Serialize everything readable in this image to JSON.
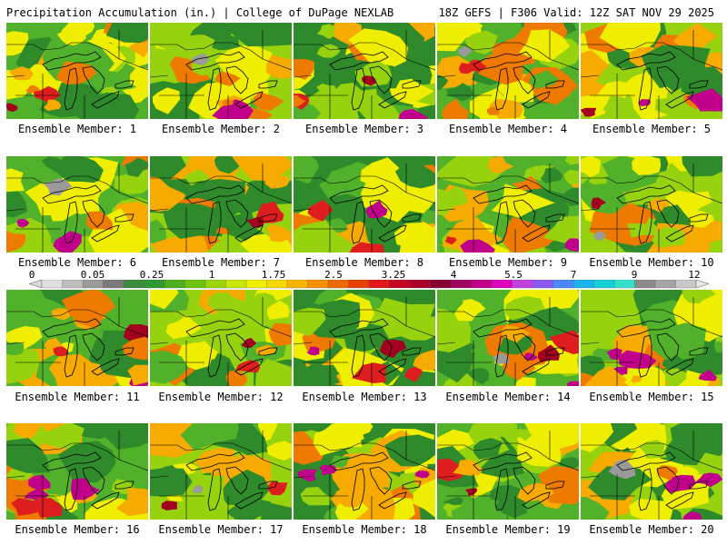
{
  "header": {
    "title": "Precipitation Accumulation (in.) | College of DuPage NEXLAB",
    "model_info": "18Z GEFS | F306 Valid: 12Z SAT NOV 29 2025"
  },
  "member_label": "Ensemble Member:",
  "members": [
    {
      "number": "1"
    },
    {
      "number": "2"
    },
    {
      "number": "3"
    },
    {
      "number": "4"
    },
    {
      "number": "5"
    },
    {
      "number": "6"
    },
    {
      "number": "7"
    },
    {
      "number": "8"
    },
    {
      "number": "9"
    },
    {
      "number": "10"
    },
    {
      "number": "11"
    },
    {
      "number": "12"
    },
    {
      "number": "13"
    },
    {
      "number": "14"
    },
    {
      "number": "15"
    },
    {
      "number": "16"
    },
    {
      "number": "17"
    },
    {
      "number": "18"
    },
    {
      "number": "19"
    },
    {
      "number": "20"
    }
  ],
  "colorbar": {
    "tick_labels": [
      "0",
      "0.05",
      "0.25",
      "1",
      "1.75",
      "2.5",
      "3.25",
      "4",
      "5.5",
      "7",
      "9",
      "12"
    ],
    "colors": [
      "#e0e0e0",
      "#bdbdbd",
      "#9a9a9a",
      "#7a7a7a",
      "#3c8c3c",
      "#2f9a2f",
      "#4caf1e",
      "#6cc40e",
      "#9ad60a",
      "#c8e60a",
      "#f0f000",
      "#f8d800",
      "#f8b400",
      "#f89000",
      "#f06800",
      "#e84000",
      "#e01818",
      "#c80020",
      "#a80028",
      "#880030",
      "#a00060",
      "#c0008a",
      "#e000c0",
      "#c040e0",
      "#8a5af0",
      "#4a8af8",
      "#1ab4f0",
      "#10d0d8",
      "#30e0c8",
      "#8a8a8a",
      "#a4a4a4",
      "#c8c8c8"
    ],
    "min_color": "#d8d8d8",
    "max_color": "#e8e8e8"
  },
  "map_colors": {
    "dark_green": "#2e8a2a",
    "green": "#52b12a",
    "light_green": "#96d20e",
    "yellow": "#f0ee00",
    "orange": "#f7aa00",
    "dark_orange": "#ee7a00",
    "red": "#de1e1e",
    "dark_red": "#a30020",
    "magenta": "#c0008a",
    "gray": "#9a9a9a"
  }
}
